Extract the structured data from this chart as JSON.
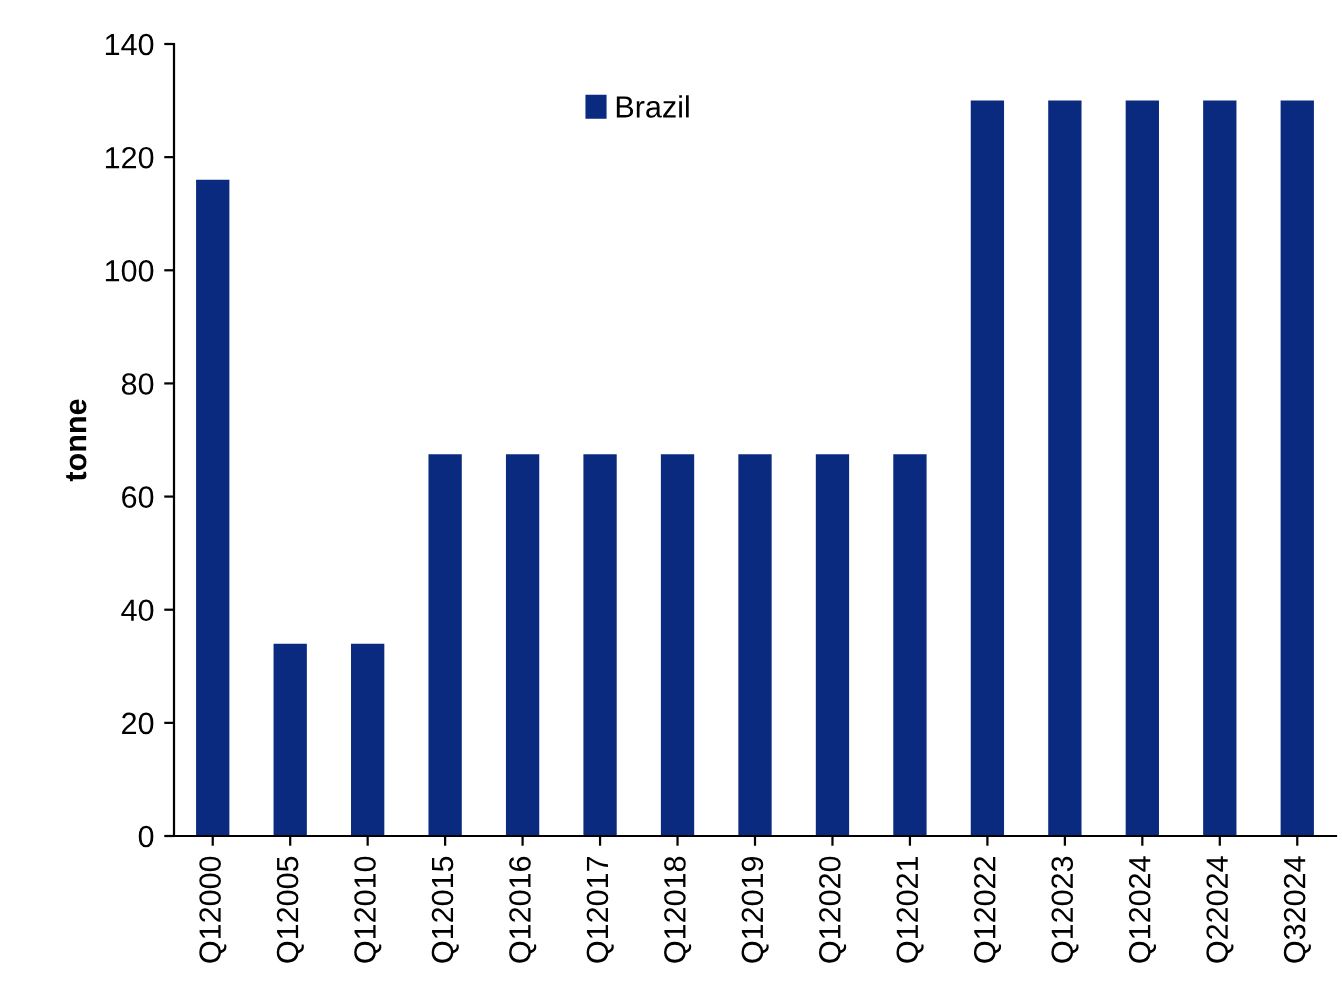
{
  "chart_data": {
    "type": "bar",
    "ylabel": "tonne",
    "categories": [
      "Q12000",
      "Q12005",
      "Q12010",
      "Q12015",
      "Q12016",
      "Q12017",
      "Q12018",
      "Q12019",
      "Q12020",
      "Q12021",
      "Q12022",
      "Q12023",
      "Q12024",
      "Q22024",
      "Q32024"
    ],
    "series": [
      {
        "name": "Brazil",
        "color": "#0a2a80",
        "values": [
          116,
          34,
          34,
          67.5,
          67.5,
          67.5,
          67.5,
          67.5,
          67.5,
          67.5,
          130,
          130,
          130,
          130,
          130
        ]
      }
    ],
    "ylim": [
      0,
      140
    ],
    "yticks": [
      0,
      20,
      40,
      60,
      80,
      100,
      120,
      140
    ],
    "grid": false,
    "legend": "top"
  }
}
